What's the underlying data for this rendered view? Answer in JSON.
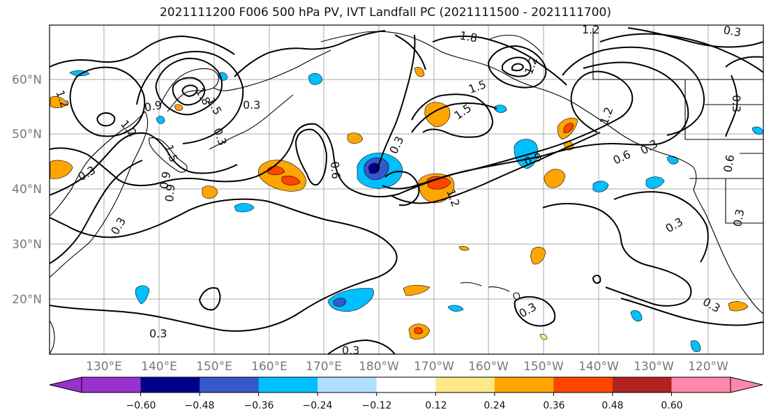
{
  "title": "2021111200 F006 500 hPa PV, IVT Landfall PC (2021111500 - 2021111700)",
  "lat_labels": [
    "60°N",
    "50°N",
    "40°N",
    "30°N",
    "20°N"
  ],
  "lon_labels": [
    "130°E",
    "140°E",
    "150°E",
    "160°E",
    "170°E",
    "180°W",
    "170°W",
    "160°W",
    "150°W",
    "140°W",
    "130°W",
    "120°W"
  ],
  "colorbar": {
    "ticks": [
      "−0.60",
      "−0.48",
      "−0.36",
      "−0.24",
      "−0.12",
      "0.12",
      "0.24",
      "0.36",
      "0.48",
      "0.60"
    ],
    "colors": [
      "#9932CC",
      "#00008B",
      "#3658C8",
      "#00BFFF",
      "#ADDFFF",
      "#FFFFFF",
      "#FFE88A",
      "#FFA500",
      "#FF4500",
      "#B22222",
      "#FF88AA"
    ]
  },
  "contour_labels": [
    "1.2",
    "1.5",
    "1.8",
    "1.5",
    "1.2",
    "1.8",
    "1.2",
    "0.9",
    "1.2",
    "1.5",
    "0.3",
    "0.3",
    "0.3",
    "0.9",
    "0.6",
    "0.3",
    "1.2",
    "1.5",
    "1.2",
    "0.9",
    "0.6",
    "0.3",
    "0.3",
    "0.3",
    "0.3",
    "0.3",
    "0.3",
    "0.9",
    "0.3",
    "0.6",
    "0.3",
    "0.3",
    "0.3"
  ]
}
